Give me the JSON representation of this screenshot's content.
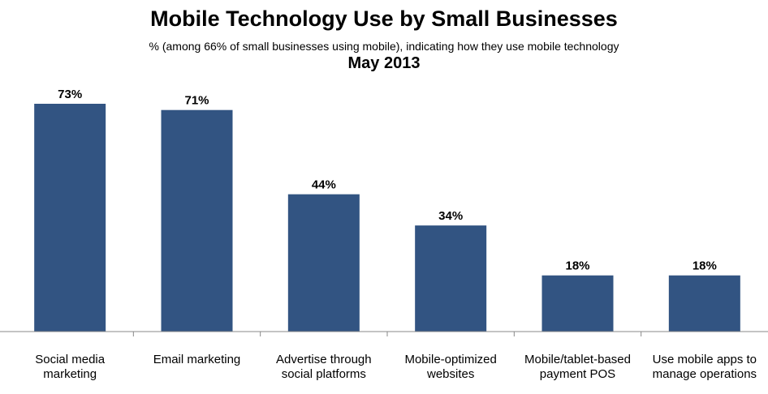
{
  "chart_data": {
    "type": "bar",
    "title": "Mobile Technology Use by Small Businesses",
    "subtitle": "% (among 66% of small businesses using mobile), indicating how they use mobile technology",
    "date": "May 2013",
    "categories": [
      [
        "Social media",
        "marketing"
      ],
      [
        "Email marketing"
      ],
      [
        "Advertise through",
        "social platforms"
      ],
      [
        "Mobile-optimized",
        "websites"
      ],
      [
        "Mobile/tablet-based",
        "payment POS"
      ],
      [
        "Use mobile apps to",
        "manage operations"
      ]
    ],
    "values": [
      73,
      71,
      44,
      34,
      18,
      18
    ],
    "value_labels": [
      "73%",
      "71%",
      "44%",
      "34%",
      "18%",
      "18%"
    ],
    "ylim": [
      0,
      73
    ],
    "bar_color": "#325482",
    "grid": false
  }
}
